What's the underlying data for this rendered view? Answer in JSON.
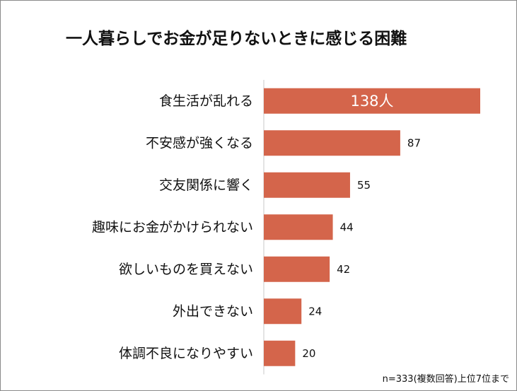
{
  "chart_data": {
    "type": "bar",
    "orientation": "horizontal",
    "title": "一人暮らしでお金が足りないときに感じる困難",
    "categories": [
      "食生活が乱れる",
      "不安感が強くなる",
      "交友関係に響く",
      "趣味にお金がかけられない",
      "欲しいものを買えない",
      "外出できない",
      "体調不良になりやすい"
    ],
    "values": [
      138,
      87,
      55,
      44,
      42,
      24,
      20
    ],
    "data_labels": [
      "138人",
      "87",
      "55",
      "44",
      "42",
      "24",
      "20"
    ],
    "xlim": [
      0,
      140
    ],
    "grid": false,
    "legend": "none",
    "note": "n=333(複数回答)上位7位まで",
    "colors": {
      "bar": "#d4654b",
      "inside_label": "#ffffff",
      "text": "#111111",
      "axis": "#c8c8c8",
      "frame": "#8a8a8a"
    }
  }
}
